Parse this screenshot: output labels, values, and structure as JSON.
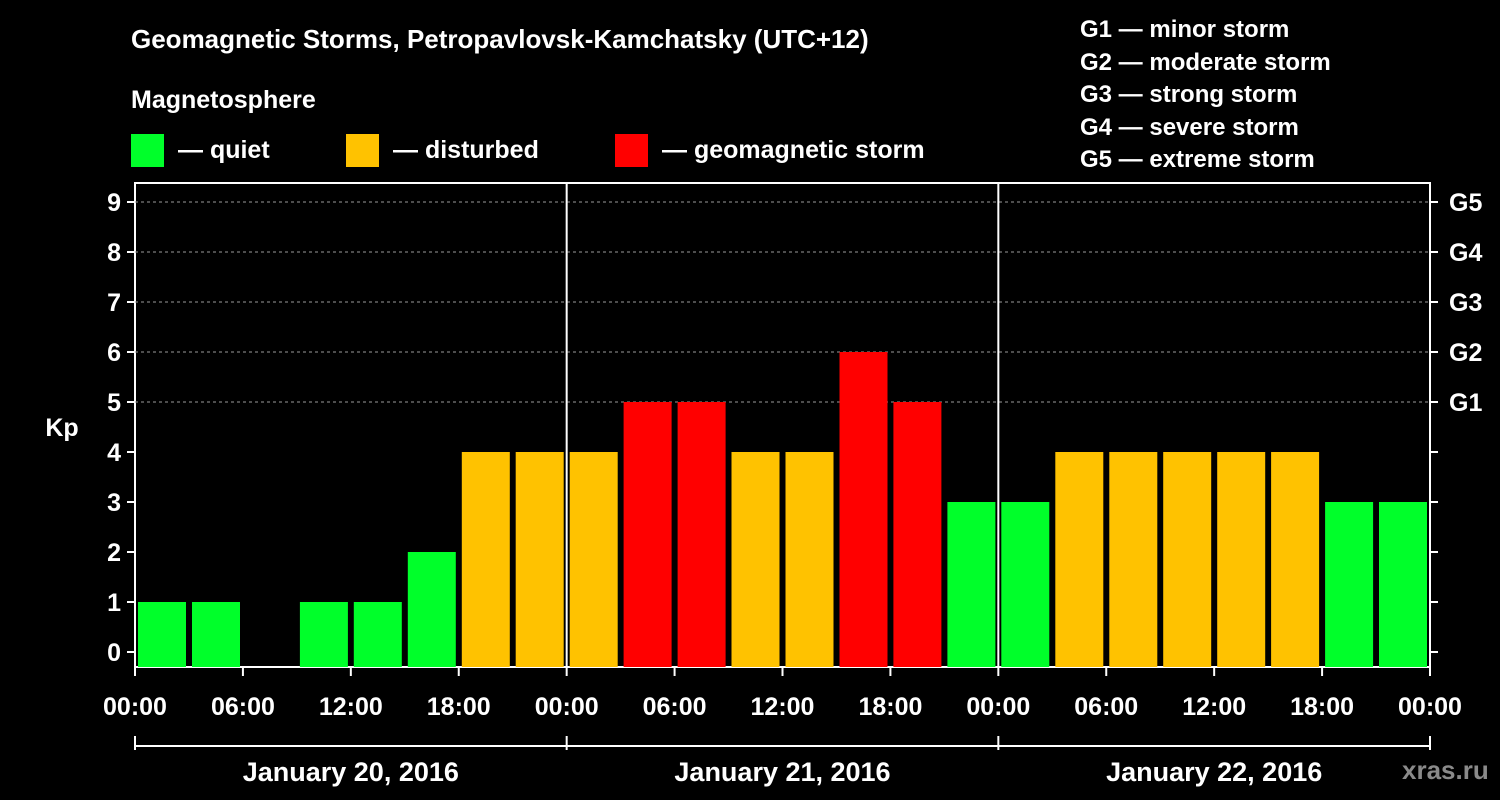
{
  "header": {
    "title": "Geomagnetic Storms, Petropavlovsk-Kamchatsky (UTC+12)",
    "subtitle": "Magnetosphere"
  },
  "legend": [
    {
      "label": "— quiet",
      "color": "#00ff2a"
    },
    {
      "label": "— disturbed",
      "color": "#ffc200"
    },
    {
      "label": "— geomagnetic storm",
      "color": "#ff0000"
    }
  ],
  "storm_scale": [
    "G1 — minor storm",
    "G2 — moderate storm",
    "G3 — strong storm",
    "G4 — severe storm",
    "G5 — extreme storm"
  ],
  "watermark": "xras.ru",
  "chart_data": {
    "type": "bar",
    "ylabel": "Kp",
    "ylim": [
      0,
      9
    ],
    "yticks": [
      0,
      1,
      2,
      3,
      4,
      5,
      6,
      7,
      8,
      9
    ],
    "right_ticks": [
      {
        "value": 5,
        "label": "G1"
      },
      {
        "value": 6,
        "label": "G2"
      },
      {
        "value": 7,
        "label": "G3"
      },
      {
        "value": 8,
        "label": "G4"
      },
      {
        "value": 9,
        "label": "G5"
      }
    ],
    "xtick_labels": [
      "00:00",
      "06:00",
      "12:00",
      "18:00",
      "00:00",
      "06:00",
      "12:00",
      "18:00",
      "00:00",
      "06:00",
      "12:00",
      "18:00",
      "00:00"
    ],
    "days": [
      "January 20, 2016",
      "January 21, 2016",
      "January 22, 2016"
    ],
    "interval_hours": 3,
    "values": [
      1,
      1,
      0,
      1,
      1,
      2,
      4,
      4,
      4,
      5,
      5,
      4,
      4,
      6,
      5,
      3,
      3,
      4,
      4,
      4,
      4,
      4,
      3,
      3
    ],
    "colors": {
      "quiet": "#00ff2a",
      "disturbed": "#ffc200",
      "storm": "#ff0000"
    },
    "thresholds": {
      "disturbed_min": 4,
      "storm_min": 5
    },
    "gridlines": [
      5,
      6,
      7,
      8,
      9
    ]
  }
}
